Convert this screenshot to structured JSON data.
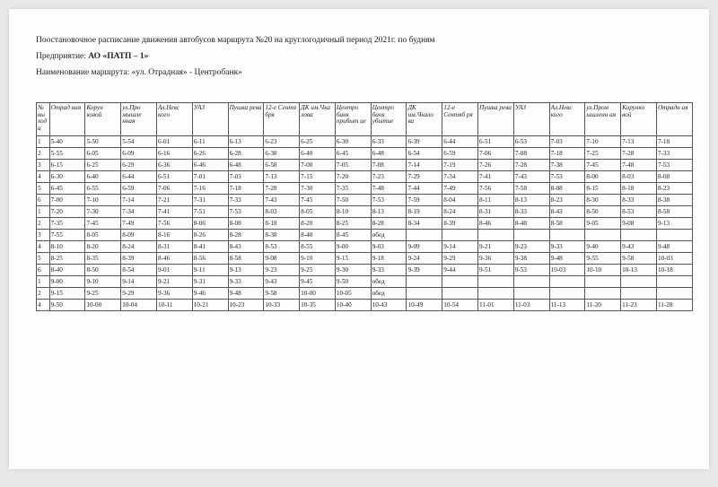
{
  "header": {
    "line1": "Поостановочное расписание движения автобусов маршрута  №20 на  круглогодичный  период  2021г. по будням",
    "line2_label": "Предприятие: ",
    "line2_value": "АО «ПАТП – 1»",
    "line3_label": "Наименование маршрута:  ",
    "line3_value": "«ул. Отрадная» - Центробанк»"
  },
  "table": {
    "columns": [
      "№ вы ход а",
      "Отрад ная",
      "Корун ковой",
      "ул.Про мышле нная",
      "Ал.Невс кого",
      "УАЗ",
      "Пушка рева",
      "12-е Сентя бря",
      "ДК им.Чка лова",
      "Центро банк прибыт ие",
      "Центро банк убытие",
      "ДК им.Чкало ва",
      "12-е Сентяб ря",
      "Пушка рева",
      "УАЗ",
      "Ал.Невс кого",
      "ул.Пром ышленн ая",
      "Корунко вой",
      "Отрадн ая"
    ],
    "rows": [
      [
        "1",
        "5-40",
        "5-50",
        "5-54",
        "6-01",
        "6-11",
        "6-13",
        "6-23",
        "6-25",
        "6-30",
        "6-33",
        "6-39",
        "6-44",
        "6-51",
        "6-53",
        "7-03",
        "7-10",
        "7-13",
        "7-18"
      ],
      [
        "2",
        "5-55",
        "6-05",
        "6-09",
        "6-16",
        "6-26",
        "6-28",
        "6-38",
        "6-40",
        "6-45",
        "6-48",
        "6-54",
        "6-59",
        "7-06",
        "7-08",
        "7-18",
        "7-25",
        "7-28",
        "7-33"
      ],
      [
        "3",
        "6-15",
        "6-25",
        "6-29",
        "6-36",
        "6-46",
        "6-48",
        "6-58",
        "7-00",
        "7-05",
        "7-08",
        "7-14",
        "7-19",
        "7-26",
        "7-28",
        "7-38",
        "7-45",
        "7-48",
        "7-53"
      ],
      [
        "4",
        "6-30",
        "6-40",
        "6-44",
        "6-51",
        "7-01",
        "7-03",
        "7-13",
        "7-15",
        "7-20",
        "7-23",
        "7-29",
        "7-34",
        "7-41",
        "7-43",
        "7-53",
        "8-00",
        "8-03",
        "8-08"
      ],
      [
        "5",
        "6-45",
        "6-55",
        "6-59",
        "7-06",
        "7-16",
        "7-18",
        "7-28",
        "7-30",
        "7-35",
        "7-48",
        "7-44",
        "7-49",
        "7-56",
        "7-58",
        "8-08",
        "8-15",
        "8-18",
        "8-23"
      ],
      [
        "6",
        "7-00",
        "7-10",
        "7-14",
        "7-21",
        "7-31",
        "7-33",
        "7-43",
        "7-45",
        "7-50",
        "7-53",
        "7-59",
        "8-04",
        "8-11",
        "8-13",
        "8-23",
        "8-30",
        "8-33",
        "8-38"
      ],
      [
        "1",
        "7-20",
        "7-30",
        "7-34",
        "7-41",
        "7-51",
        "7-53",
        "8-03",
        "8-05",
        "8-10",
        "8-13",
        "8-19",
        "8-24",
        "8-31",
        "8-33",
        "8-43",
        "8-50",
        "8-53",
        "8-58"
      ],
      [
        "2",
        "7-35",
        "7-45",
        "7-49",
        "7-56",
        "8-06",
        "8-08",
        "8-18",
        "8-20",
        "8-25",
        "8-28",
        "8-34",
        "8-39",
        "8-46",
        "8-48",
        "8-58",
        "9-05",
        "9-08",
        "9-13"
      ],
      [
        "3",
        "7-55",
        "8-05",
        "8-09",
        "8-16",
        "8-26",
        "8-28",
        "8-38",
        "8-40",
        "8-45",
        "обед",
        "",
        "",
        "",
        "",
        "",
        "",
        "",
        ""
      ],
      [
        "4",
        "8-10",
        "8-20",
        "8-24",
        "8-31",
        "8-41",
        "8-43",
        "8-53",
        "8-55",
        "9-00",
        "9-03",
        "9-09",
        "9-14",
        "9-21",
        "9-23",
        "9-33",
        "9-40",
        "9-43",
        "9-48"
      ],
      [
        "5",
        "8-25",
        "8-35",
        "8-39",
        "8-46",
        "8-56",
        "8-58",
        "9-08",
        "9-10",
        "9-15",
        "9-18",
        "9-24",
        "9-29",
        "9-36",
        "9-38",
        "9-48",
        "9-55",
        "9-58",
        "10-03"
      ],
      [
        "6",
        "8-40",
        "8-50",
        "8-54",
        "9-01",
        "9-11",
        "9-13",
        "9-23",
        "9-25",
        "9-30",
        "9-33",
        "9-39",
        "9-44",
        "9-51",
        "9-53",
        "10-03",
        "10-10",
        "10-13",
        "10-18"
      ],
      [
        "1",
        "9-00",
        "9-10",
        "9-14",
        "9-21",
        "9-31",
        "9-33",
        "9-43",
        "9-45",
        "9-50",
        "обед",
        "",
        "",
        "",
        "",
        "",
        "",
        "",
        ""
      ],
      [
        "2",
        "9-15",
        "9-25",
        "9-29",
        "9-36",
        "9-46",
        "9-48",
        "9-58",
        "10-00",
        "10-05",
        "обед",
        "",
        "",
        "",
        "",
        "",
        "",
        "",
        ""
      ],
      [
        "4",
        "9-50",
        "10-00",
        "10-04",
        "10-11",
        "10-21",
        "10-23",
        "10-33",
        "10-35",
        "10-40",
        "10-43",
        "10-49",
        "10-54",
        "11-01",
        "11-03",
        "11-13",
        "11-20",
        "11-23",
        "11-28"
      ]
    ],
    "style": {
      "border_color": "#555555",
      "text_color": "#222222",
      "font_size_pt": 7.2,
      "header_italic": true,
      "background": "#fdfdfd"
    }
  }
}
